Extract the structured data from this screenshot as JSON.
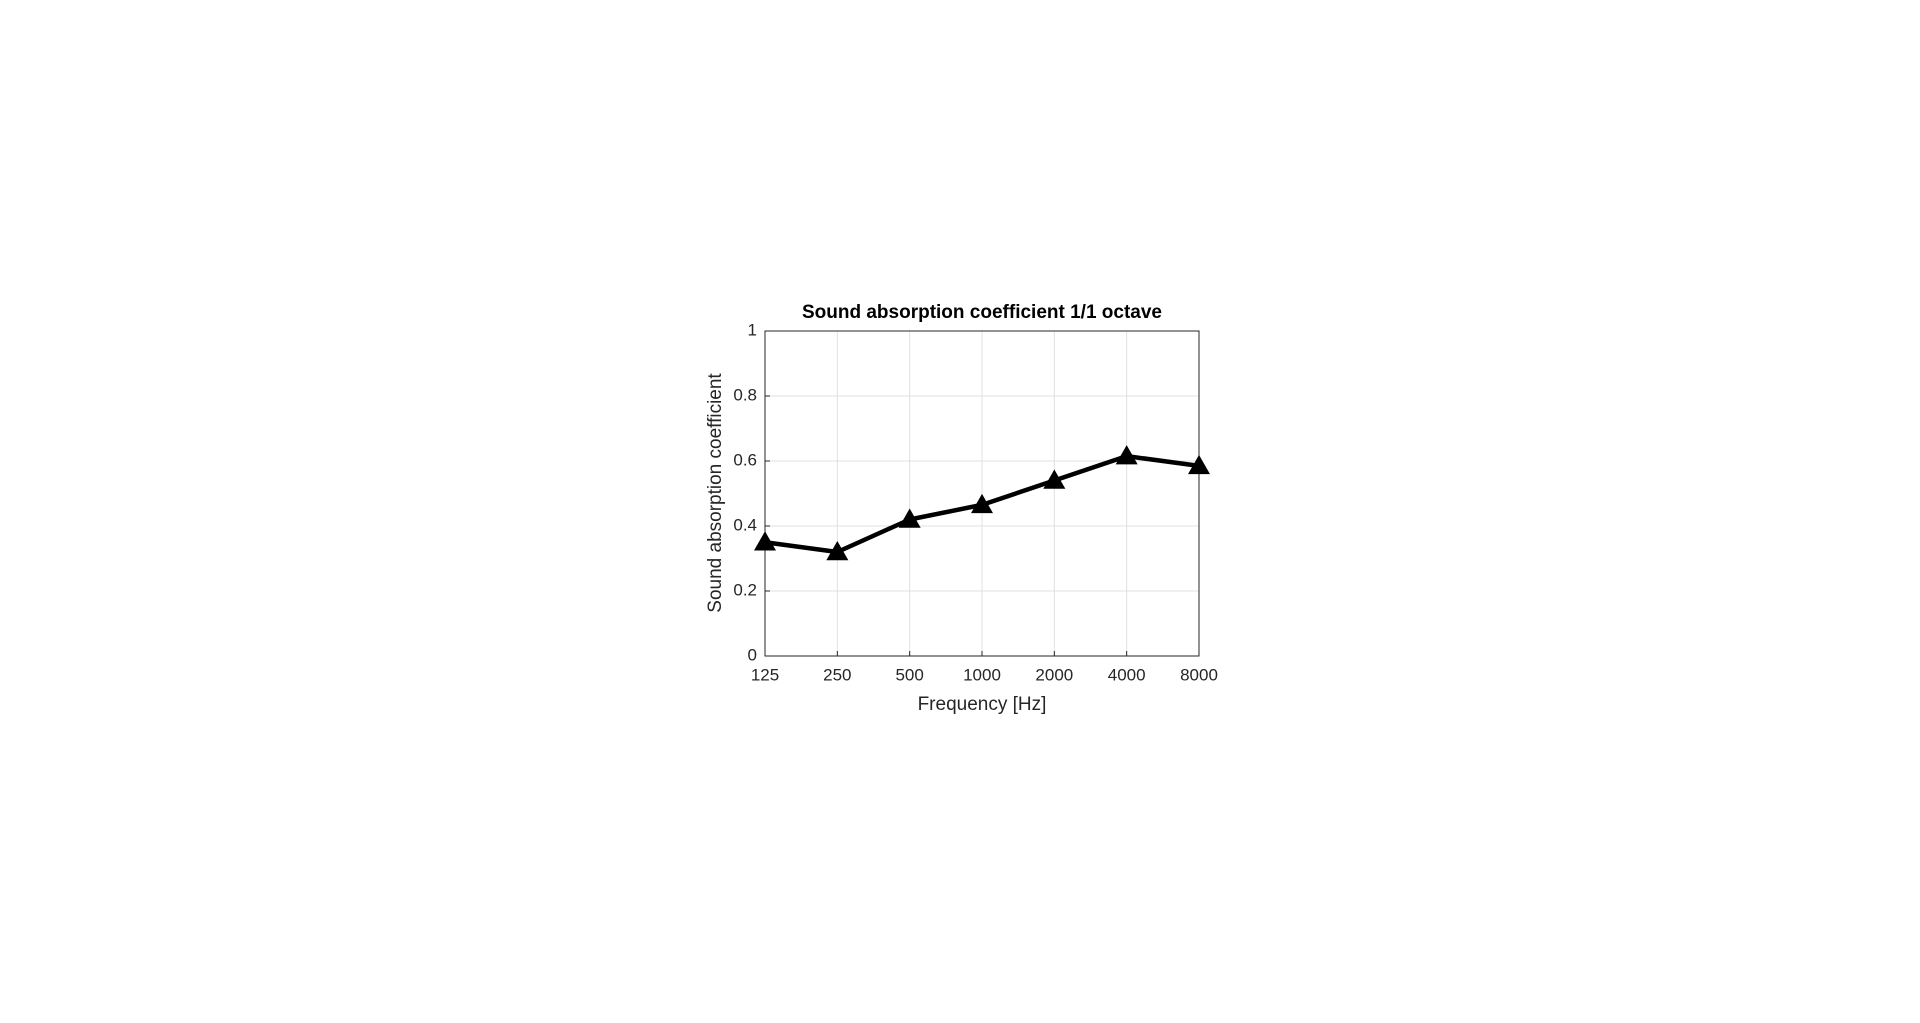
{
  "chart_data": {
    "type": "line",
    "title": "Sound absorption coefficient 1/1 octave",
    "x_label": "Frequency [Hz]",
    "y_label": "Sound absorption coefficient",
    "x": [
      125,
      250,
      500,
      1000,
      2000,
      4000,
      8000
    ],
    "values": [
      0.35,
      0.32,
      0.42,
      0.465,
      0.54,
      0.615,
      0.585
    ],
    "color": "#000000",
    "marker": "triangle",
    "xscale": "log",
    "xlim": [
      125,
      8000
    ],
    "xticks": [
      125,
      250,
      500,
      1000,
      2000,
      4000,
      8000
    ],
    "ylim": [
      0,
      1
    ],
    "yticks": [
      0,
      0.2,
      0.4,
      0.6,
      0.8,
      1
    ],
    "grid": true
  }
}
